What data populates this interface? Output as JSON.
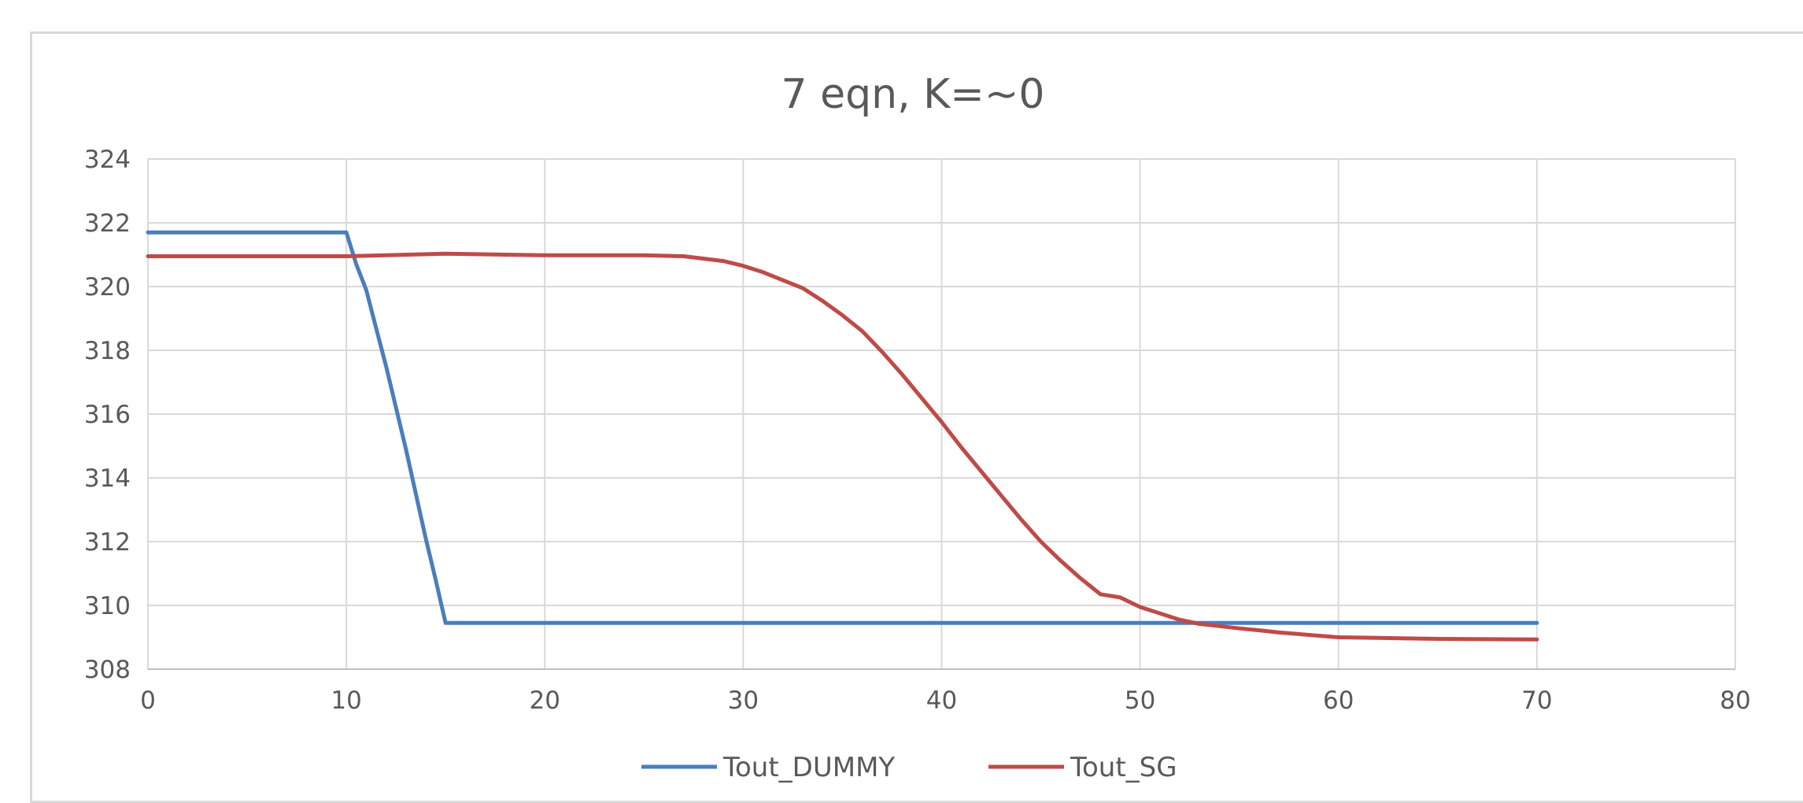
{
  "chart_data": {
    "type": "line",
    "title": "7 eqn, K=~0",
    "xlabel": "",
    "ylabel": "",
    "xlim": [
      0,
      80
    ],
    "ylim": [
      308,
      324
    ],
    "xticks": [
      "0",
      "10",
      "20",
      "30",
      "40",
      "50",
      "60",
      "70",
      "80"
    ],
    "yticks": [
      "308",
      "310",
      "312",
      "314",
      "316",
      "318",
      "320",
      "322",
      "324"
    ],
    "grid": true,
    "legend": "bottom-center",
    "series": [
      {
        "name": "Tout_DUMMY",
        "color": "#4a7ebb",
        "x": [
          0,
          10,
          10.5,
          11,
          11.5,
          12,
          12.5,
          13,
          13.5,
          14,
          14.5,
          15,
          20,
          30,
          40,
          50,
          60,
          70
        ],
        "y": [
          321.7,
          321.7,
          320.7,
          319.9,
          318.7,
          317.5,
          316.2,
          314.9,
          313.5,
          312.1,
          310.8,
          309.45,
          309.45,
          309.45,
          309.45,
          309.45,
          309.45,
          309.45
        ]
      },
      {
        "name": "Tout_SG",
        "color": "#be4b48",
        "x": [
          0,
          5,
          10,
          15,
          20,
          25,
          27,
          29,
          30,
          31,
          32,
          33,
          34,
          35,
          36,
          37,
          38,
          39,
          40,
          41,
          42,
          43,
          44,
          45,
          46,
          47,
          48,
          49,
          50,
          51,
          52,
          53,
          54,
          55,
          56,
          57,
          58,
          59,
          60,
          62,
          64,
          65,
          70
        ],
        "y": [
          320.95,
          320.95,
          320.95,
          321.03,
          320.98,
          320.98,
          320.95,
          320.8,
          320.65,
          320.45,
          320.2,
          319.95,
          319.55,
          319.1,
          318.6,
          317.95,
          317.25,
          316.5,
          315.75,
          314.95,
          314.2,
          313.45,
          312.7,
          312.0,
          311.4,
          310.85,
          310.35,
          310.25,
          309.95,
          309.75,
          309.55,
          309.42,
          309.35,
          309.28,
          309.22,
          309.15,
          309.1,
          309.05,
          309.0,
          308.98,
          308.96,
          308.95,
          308.93
        ]
      }
    ]
  }
}
